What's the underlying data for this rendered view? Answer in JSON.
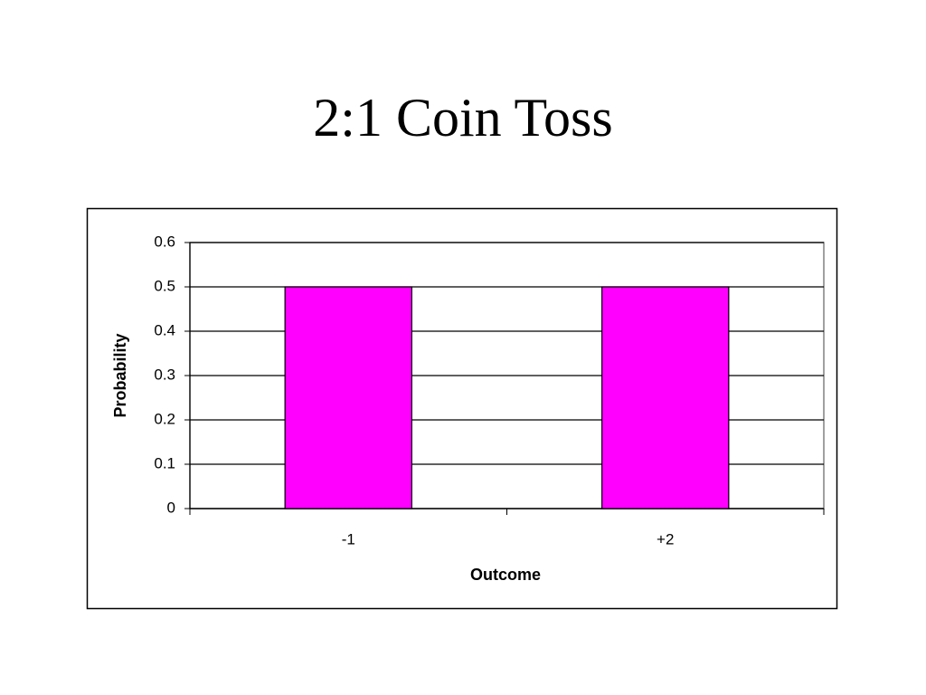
{
  "chart_data": {
    "type": "bar",
    "title": "2:1 Coin Toss",
    "categories": [
      "-1",
      "+2"
    ],
    "values": [
      0.5,
      0.5
    ],
    "color": "#ff00ff",
    "x_label": "Outcome",
    "y_label": "Probability",
    "ylim": [
      0,
      0.6
    ],
    "yticks": [
      0,
      0.1,
      0.2,
      0.3,
      0.4,
      0.5,
      0.6
    ],
    "grid": true
  }
}
